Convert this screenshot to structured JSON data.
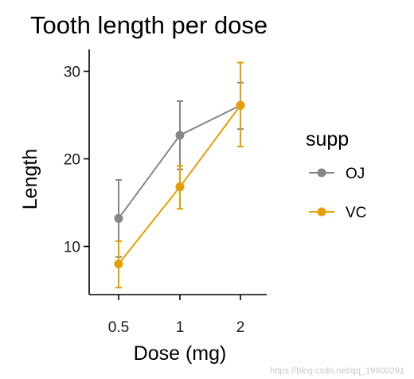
{
  "chart_data": {
    "type": "line",
    "title": "Tooth length per dose",
    "xlabel": "Dose (mg)",
    "ylabel": "Length",
    "categories": [
      "0.5",
      "1",
      "2"
    ],
    "yticks": [
      10,
      20,
      30
    ],
    "ylim": [
      4.5,
      32.5
    ],
    "grid": false,
    "legend": {
      "title": "supp",
      "position": "right"
    },
    "series": [
      {
        "name": "OJ",
        "color": "#868686",
        "values": [
          13.2,
          22.7,
          26.1
        ],
        "error_low": [
          8.8,
          18.8,
          23.4
        ],
        "error_high": [
          17.6,
          26.6,
          28.7
        ]
      },
      {
        "name": "VC",
        "color": "#E69F00",
        "values": [
          8.0,
          16.8,
          26.1
        ],
        "error_low": [
          5.3,
          14.3,
          21.4
        ],
        "error_high": [
          10.6,
          19.2,
          31.0
        ]
      }
    ]
  },
  "watermark": "https://blog.csdn.net/qq_19600291"
}
